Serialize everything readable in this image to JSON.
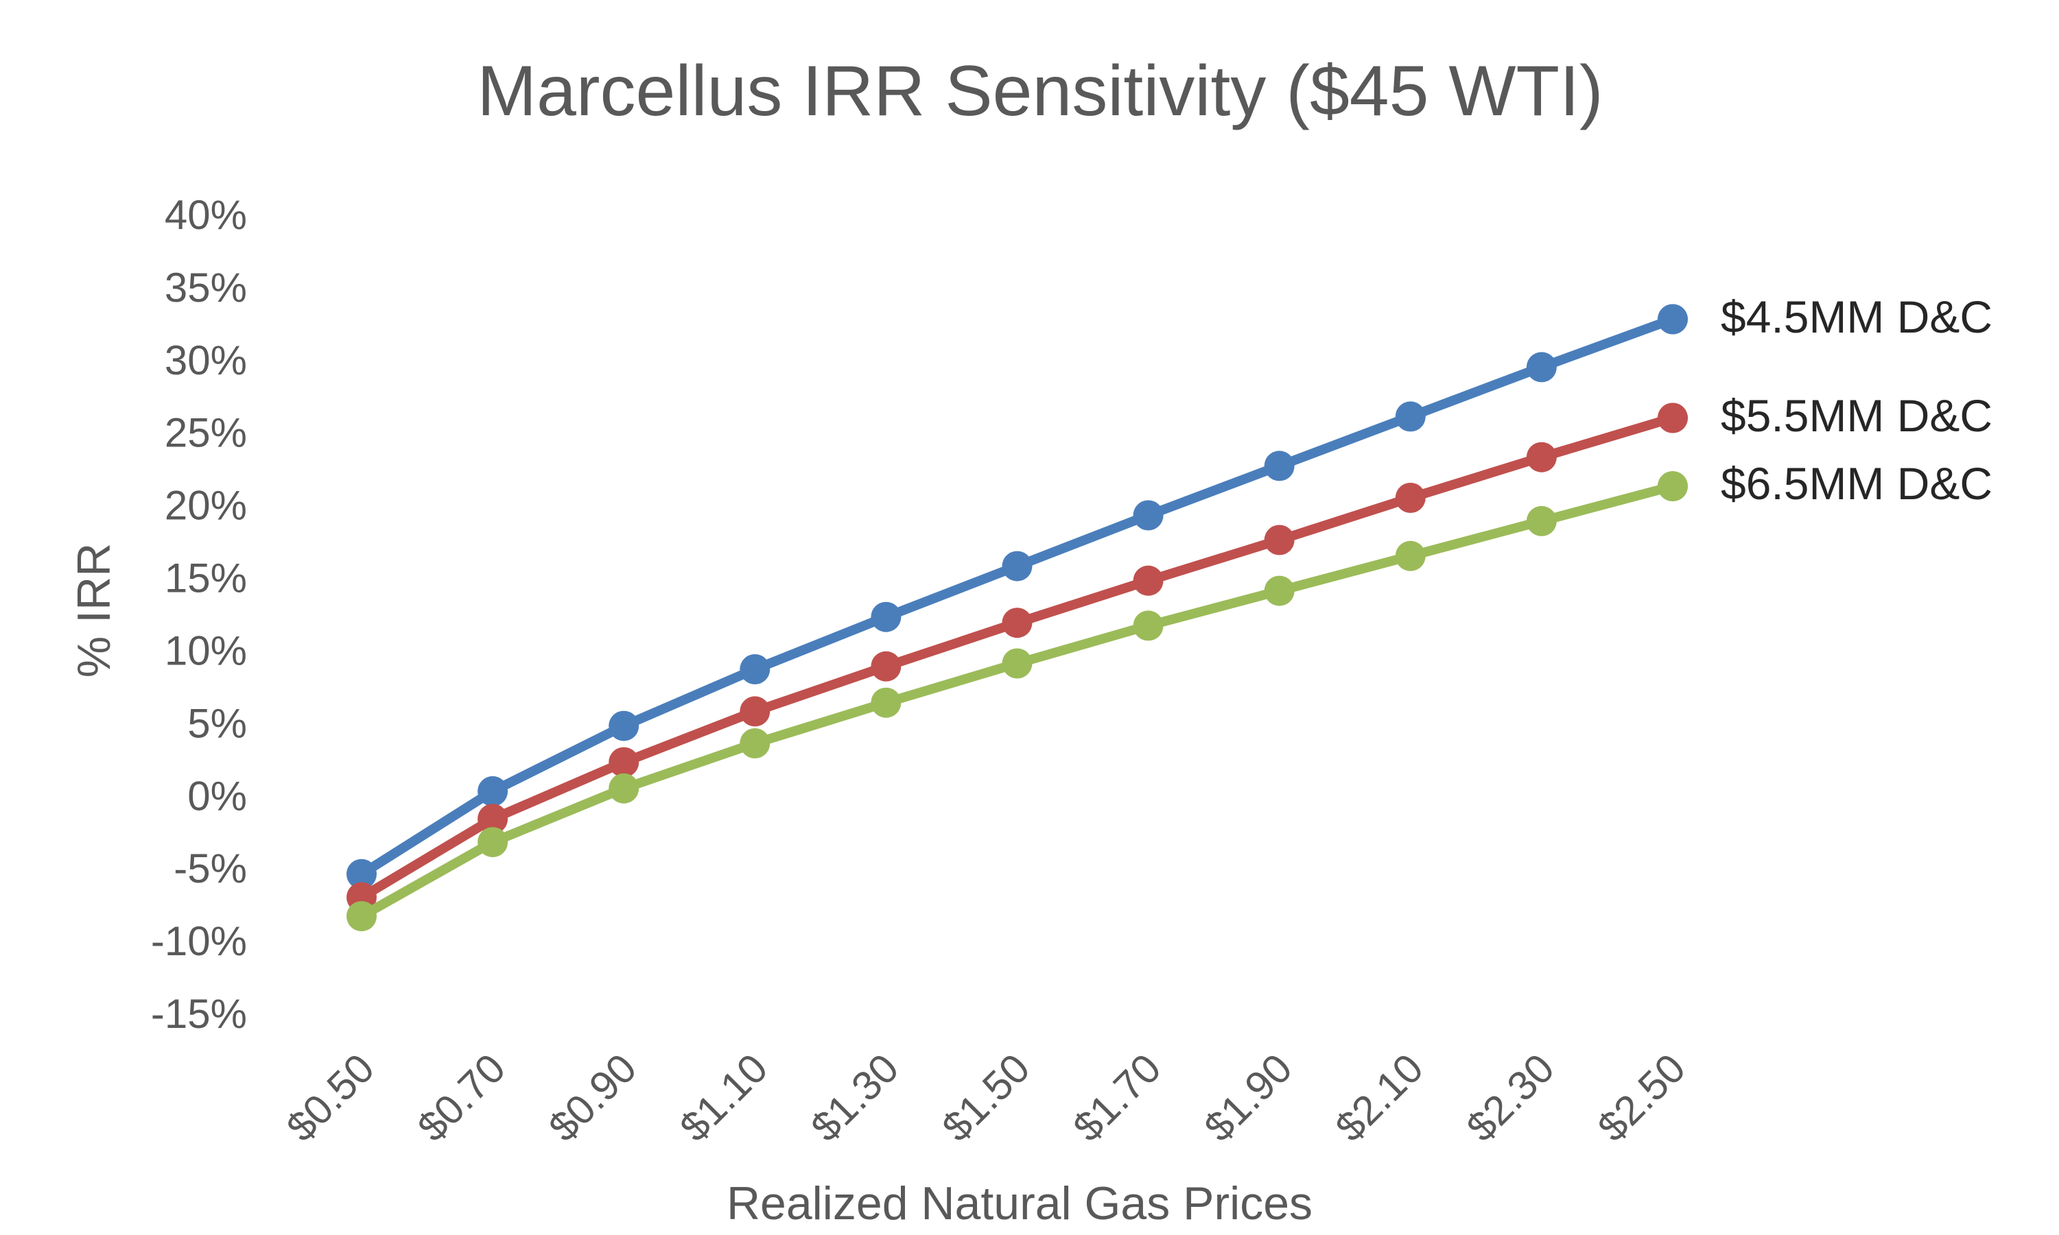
{
  "chart_data": {
    "type": "line",
    "title": "Marcellus IRR Sensitivity ($45 WTI)",
    "xlabel": "Realized Natural Gas Prices",
    "ylabel": "% IRR",
    "categories": [
      "$0.50",
      "$0.70",
      "$0.90",
      "$1.10",
      "$1.30",
      "$1.50",
      "$1.70",
      "$1.90",
      "$2.10",
      "$2.30",
      "$2.50"
    ],
    "ylim": [
      -15,
      40
    ],
    "ytick_values": [
      40,
      35,
      30,
      25,
      20,
      15,
      10,
      5,
      0,
      -5,
      -10,
      -15
    ],
    "ytick_labels": [
      "40%",
      "35%",
      "30%",
      "25%",
      "20%",
      "15%",
      "10%",
      "5%",
      "0%",
      "-5%",
      "-10%",
      "-15%"
    ],
    "grid": false,
    "legend": "right",
    "series": [
      {
        "name": "$4.5MM D&C",
        "color": "#4a7ebb",
        "values": [
          -5.4,
          0.3,
          4.8,
          8.7,
          12.3,
          15.8,
          19.3,
          22.7,
          26.1,
          29.5,
          32.8
        ]
      },
      {
        "name": "$5.5MM D&C",
        "color": "#c0504d",
        "values": [
          -7.0,
          -1.6,
          2.3,
          5.8,
          8.9,
          11.9,
          14.8,
          17.6,
          20.5,
          23.3,
          26.0
        ]
      },
      {
        "name": "$6.5MM D&C",
        "color": "#9bbb59",
        "values": [
          -8.3,
          -3.2,
          0.5,
          3.6,
          6.4,
          9.1,
          11.7,
          14.1,
          16.5,
          18.9,
          21.3
        ]
      }
    ]
  }
}
